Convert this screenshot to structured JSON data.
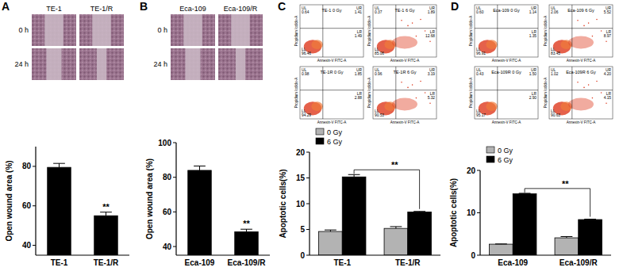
{
  "panels": [
    "A",
    "B",
    "C",
    "D"
  ],
  "micrographs": [
    {
      "columns": [
        "TE-1",
        "TE-1/R"
      ],
      "rows": [
        "0 h",
        "24 h"
      ]
    },
    {
      "columns": [
        "Eca-109",
        "Eca-109/R"
      ],
      "rows": [
        "0 h",
        "24 h"
      ]
    }
  ],
  "flow_plots": [
    {
      "x_label": "Annexin-V FITC-A",
      "y_label": "Propidium Iodide-A",
      "plots": [
        {
          "title": "TE-1 0 Gy",
          "quadrants": [
            {
              "label": "UL",
              "value": "0.64"
            },
            {
              "label": "UR",
              "value": "1.41"
            },
            {
              "label": "LL",
              "value": "96.46"
            },
            {
              "label": "LR",
              "value": "1.49"
            }
          ]
        },
        {
          "title": "TE-1 6 Gy",
          "quadrants": [
            {
              "label": "UL",
              "value": "0.37"
            },
            {
              "label": "UR",
              "value": "1.89"
            },
            {
              "label": "LL",
              "value": "85.06"
            },
            {
              "label": "LR",
              "value": "12.68"
            }
          ]
        },
        {
          "title": "TE-1R 0 Gy",
          "quadrants": [
            {
              "label": "UL",
              "value": "0.98"
            },
            {
              "label": "UR",
              "value": "1.85"
            },
            {
              "label": "LL",
              "value": "94.29"
            },
            {
              "label": "LR",
              "value": "2.88"
            }
          ]
        },
        {
          "title": "TE-1R 6 Gy",
          "quadrants": [
            {
              "label": "UL",
              "value": "0.96"
            },
            {
              "label": "UR",
              "value": "3.19"
            },
            {
              "label": "LL",
              "value": "90.53"
            },
            {
              "label": "LR",
              "value": "5.32"
            }
          ]
        }
      ]
    },
    {
      "x_label": "Annexin-V FITC-A",
      "y_label": "Propidium Iodide-A",
      "plots": [
        {
          "title": "Eca-109 0 Gy",
          "quadrants": [
            {
              "label": "UL",
              "value": "0.60"
            },
            {
              "label": "UR",
              "value": "1.14"
            },
            {
              "label": "LL",
              "value": "96.91"
            },
            {
              "label": "LR",
              "value": "1.35"
            }
          ]
        },
        {
          "title": "Eca-109 6 Gy",
          "quadrants": [
            {
              "label": "UL",
              "value": "2.06"
            },
            {
              "label": "UR",
              "value": "5.52"
            },
            {
              "label": "LL",
              "value": "83.45"
            },
            {
              "label": "LR",
              "value": "8.97"
            }
          ]
        },
        {
          "title": "Eca-109R 0 Gy",
          "quadrants": [
            {
              "label": "UL",
              "value": "0.43"
            },
            {
              "label": "UR",
              "value": "1.50"
            },
            {
              "label": "LL",
              "value": "95.17"
            },
            {
              "label": "LR",
              "value": "2.90"
            }
          ]
        },
        {
          "title": "Eca-109R 6 Gy",
          "quadrants": [
            {
              "label": "UL",
              "value": "1.02"
            },
            {
              "label": "UR",
              "value": "4.20"
            },
            {
              "label": "LL",
              "value": "90.63"
            },
            {
              "label": "LR",
              "value": "4.15"
            }
          ]
        }
      ]
    }
  ],
  "chart_data": [
    {
      "type": "bar",
      "y_label": "Open wound area (%)",
      "categories": [
        "TE-1",
        "TE-1/R"
      ],
      "values": [
        79.5,
        55
      ],
      "errors": [
        2,
        1.8
      ],
      "color": "#000000",
      "ylim": [
        35,
        90
      ],
      "yticks": [
        40,
        60,
        80
      ],
      "annotations": [
        {
          "text": "**",
          "categories": [
            1
          ]
        }
      ]
    },
    {
      "type": "bar",
      "y_label": "Open wound area (%)",
      "categories": [
        "Eca-109",
        "Eca-109/R"
      ],
      "values": [
        84,
        48.5
      ],
      "errors": [
        2.5,
        1.5
      ],
      "color": "#000000",
      "ylim": [
        35,
        100
      ],
      "yticks": [
        40,
        60,
        80,
        100
      ],
      "annotations": [
        {
          "text": "**",
          "categories": [
            1
          ]
        }
      ]
    },
    {
      "type": "bar",
      "y_label": "Apoptotic cells(%)",
      "categories": [
        "TE-1",
        "TE-1/R"
      ],
      "series": [
        {
          "name": "0 Gy",
          "color": "#b3b3b3",
          "values": [
            4.6,
            5.2
          ],
          "errors": [
            0.3,
            0.35
          ]
        },
        {
          "name": "6 Gy",
          "color": "#000000",
          "values": [
            15.2,
            8.4
          ],
          "errors": [
            0.45,
            0.1
          ]
        }
      ],
      "ylim": [
        0,
        20
      ],
      "yticks": [
        0,
        5,
        10,
        15,
        20
      ],
      "legend": "upper left",
      "annotations": [
        {
          "text": "**",
          "series": 1,
          "categories": [
            0,
            1
          ]
        }
      ]
    },
    {
      "type": "bar",
      "y_label": "Apoptotic cells(%)",
      "categories": [
        "Eca-109",
        "Eca-109/R"
      ],
      "series": [
        {
          "name": "0 Gy",
          "color": "#b3b3b3",
          "values": [
            2.6,
            4.1
          ],
          "errors": [
            0.05,
            0.3
          ]
        },
        {
          "name": "6 Gy",
          "color": "#000000",
          "values": [
            14.5,
            8.4
          ],
          "errors": [
            0.1,
            0.1
          ]
        }
      ],
      "ylim": [
        0,
        20
      ],
      "yticks": [
        0,
        10,
        20
      ],
      "legend": "upper left",
      "annotations": [
        {
          "text": "**",
          "series": 1,
          "categories": [
            0,
            1
          ]
        }
      ]
    }
  ]
}
